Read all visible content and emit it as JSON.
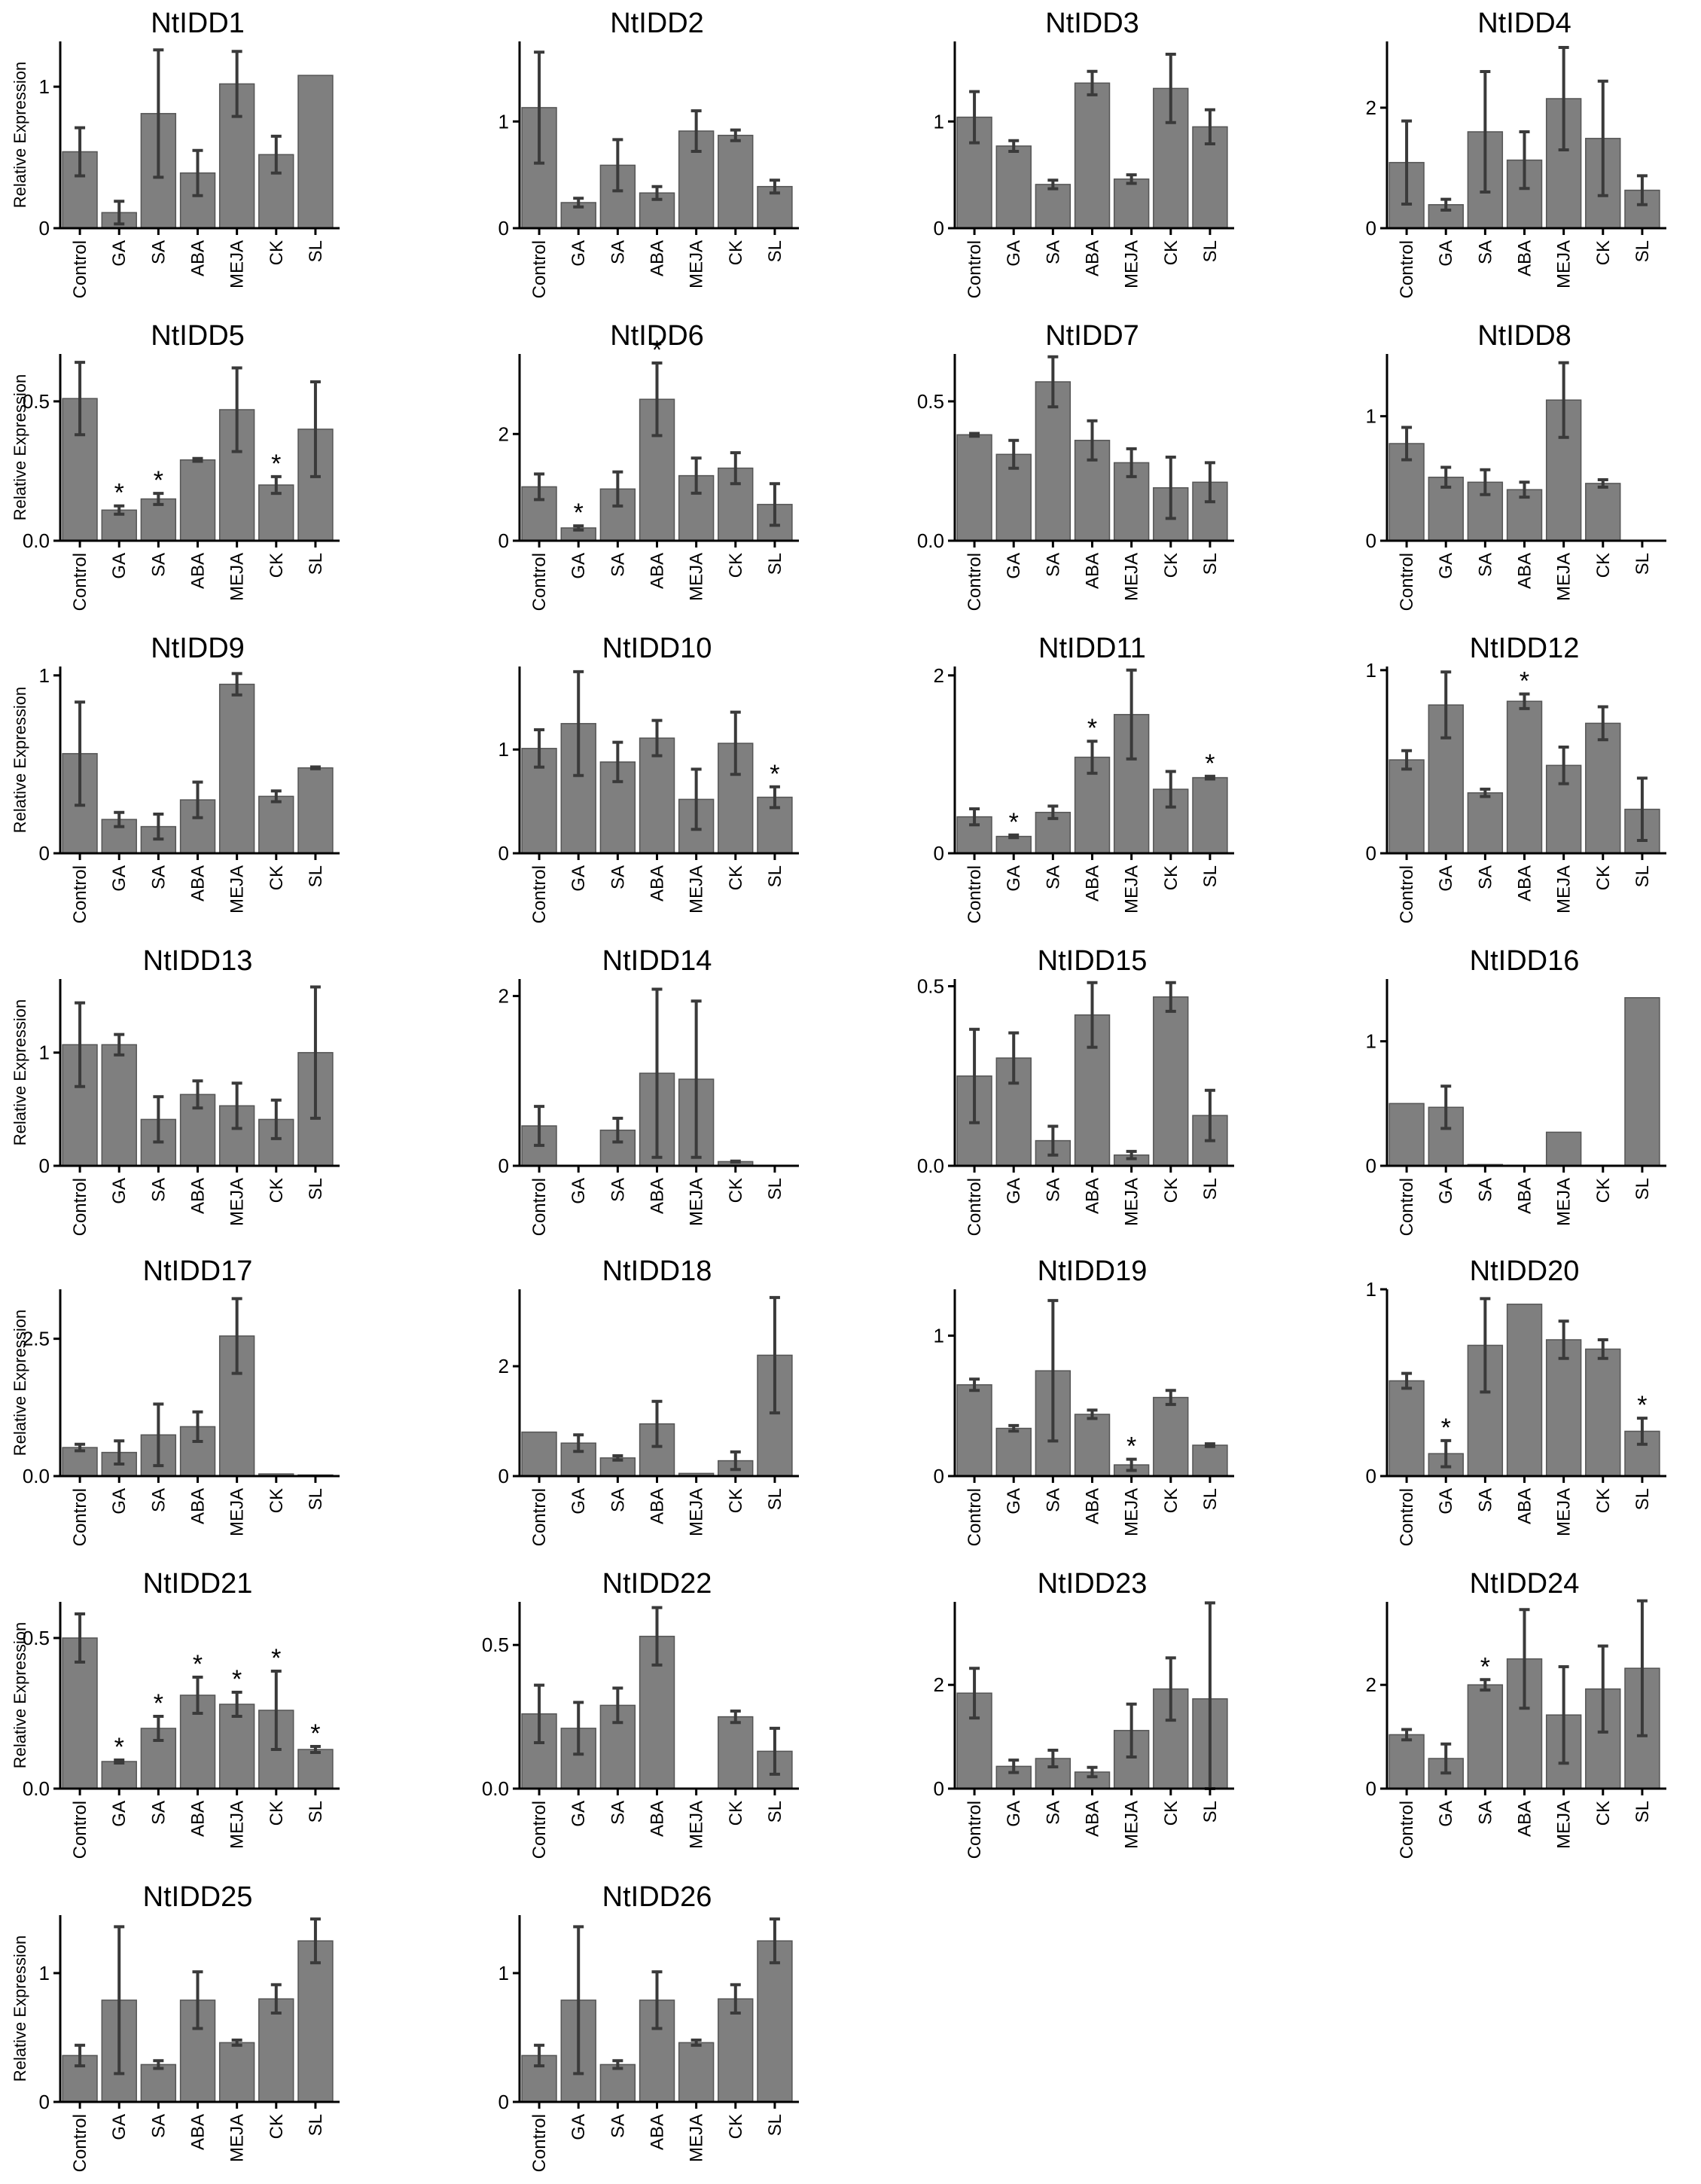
{
  "figure": {
    "ylabel": "Relative Expression",
    "colors": {
      "bar": "#7f7f7f",
      "error": "#3a3a3a",
      "axis": "#000000"
    }
  },
  "chart_data": [
    {
      "type": "bar",
      "title": "NtIDD1",
      "categories": [
        "Control",
        "GA",
        "SA",
        "ABA",
        "MEJA",
        "CK",
        "SL"
      ],
      "values": [
        0.54,
        0.11,
        0.81,
        0.39,
        1.02,
        0.52,
        1.08
      ],
      "errors": [
        0.17,
        0.08,
        0.45,
        0.16,
        0.23,
        0.13,
        0.0
      ],
      "significant": [
        false,
        false,
        false,
        false,
        false,
        false,
        false
      ],
      "ylim": [
        0,
        1.32
      ],
      "yticks": [
        "0",
        "1"
      ],
      "ytick_values": [
        0,
        1
      ]
    },
    {
      "type": "bar",
      "title": "NtIDD2",
      "categories": [
        "Control",
        "GA",
        "SA",
        "ABA",
        "MEJA",
        "CK",
        "SL"
      ],
      "values": [
        1.13,
        0.24,
        0.59,
        0.33,
        0.91,
        0.87,
        0.39
      ],
      "errors": [
        0.52,
        0.04,
        0.24,
        0.06,
        0.19,
        0.05,
        0.06
      ],
      "significant": [
        false,
        false,
        false,
        false,
        false,
        false,
        false
      ],
      "ylim": [
        0,
        1.75
      ],
      "yticks": [
        "0",
        "1"
      ],
      "ytick_values": [
        0,
        1
      ]
    },
    {
      "type": "bar",
      "title": "NtIDD3",
      "categories": [
        "Control",
        "GA",
        "SA",
        "ABA",
        "MEJA",
        "CK",
        "SL"
      ],
      "values": [
        1.04,
        0.77,
        0.41,
        1.36,
        0.46,
        1.31,
        0.95
      ],
      "errors": [
        0.24,
        0.05,
        0.04,
        0.11,
        0.04,
        0.32,
        0.16
      ],
      "significant": [
        false,
        false,
        false,
        false,
        false,
        false,
        false
      ],
      "ylim": [
        0,
        1.75
      ],
      "yticks": [
        "0",
        "1"
      ],
      "ytick_values": [
        0,
        1
      ]
    },
    {
      "type": "bar",
      "title": "NtIDD4",
      "categories": [
        "Control",
        "GA",
        "SA",
        "ABA",
        "MEJA",
        "CK",
        "SL"
      ],
      "values": [
        1.09,
        0.39,
        1.6,
        1.13,
        2.15,
        1.49,
        0.63
      ],
      "errors": [
        0.69,
        0.09,
        1.0,
        0.47,
        0.85,
        0.95,
        0.24
      ],
      "significant": [
        false,
        false,
        false,
        false,
        false,
        false,
        false
      ],
      "ylim": [
        0,
        3.1
      ],
      "yticks": [
        "0",
        "2"
      ],
      "ytick_values": [
        0,
        2
      ]
    },
    {
      "type": "bar",
      "title": "NtIDD5",
      "categories": [
        "Control",
        "GA",
        "SA",
        "ABA",
        "MEJA",
        "CK",
        "SL"
      ],
      "values": [
        0.51,
        0.11,
        0.15,
        0.29,
        0.47,
        0.2,
        0.4
      ],
      "errors": [
        0.13,
        0.015,
        0.02,
        0.005,
        0.15,
        0.03,
        0.17
      ],
      "significant": [
        false,
        true,
        true,
        false,
        false,
        true,
        false
      ],
      "ylim": [
        0,
        0.67
      ],
      "yticks": [
        "0.0",
        "0.5"
      ],
      "ytick_values": [
        0,
        0.5
      ]
    },
    {
      "type": "bar",
      "title": "NtIDD6",
      "categories": [
        "Control",
        "GA",
        "SA",
        "ABA",
        "MEJA",
        "CK",
        "SL"
      ],
      "values": [
        1.01,
        0.24,
        0.97,
        2.65,
        1.22,
        1.36,
        0.68
      ],
      "errors": [
        0.24,
        0.04,
        0.32,
        0.68,
        0.33,
        0.29,
        0.39
      ],
      "significant": [
        false,
        true,
        false,
        true,
        false,
        false,
        false
      ],
      "ylim": [
        0,
        3.5
      ],
      "yticks": [
        "0",
        "2"
      ],
      "ytick_values": [
        0,
        2
      ]
    },
    {
      "type": "bar",
      "title": "NtIDD7",
      "categories": [
        "Control",
        "GA",
        "SA",
        "ABA",
        "MEJA",
        "CK",
        "SL"
      ],
      "values": [
        0.38,
        0.31,
        0.57,
        0.36,
        0.28,
        0.19,
        0.21
      ],
      "errors": [
        0.005,
        0.05,
        0.09,
        0.07,
        0.05,
        0.11,
        0.07
      ],
      "significant": [
        false,
        false,
        false,
        false,
        false,
        false,
        false
      ],
      "ylim": [
        0,
        0.67
      ],
      "yticks": [
        "0.0",
        "0.5"
      ],
      "ytick_values": [
        0,
        0.5
      ]
    },
    {
      "type": "bar",
      "title": "NtIDD8",
      "categories": [
        "Control",
        "GA",
        "SA",
        "ABA",
        "MEJA",
        "CK",
        "SL"
      ],
      "values": [
        0.78,
        0.51,
        0.47,
        0.41,
        1.13,
        0.46,
        0.0
      ],
      "errors": [
        0.13,
        0.08,
        0.1,
        0.06,
        0.3,
        0.03,
        0.0
      ],
      "significant": [
        false,
        false,
        false,
        false,
        false,
        false,
        false
      ],
      "ylim": [
        0,
        1.5
      ],
      "yticks": [
        "0",
        "1"
      ],
      "ytick_values": [
        0,
        1
      ]
    },
    {
      "type": "bar",
      "title": "NtIDD9",
      "categories": [
        "Control",
        "GA",
        "SA",
        "ABA",
        "MEJA",
        "CK",
        "SL"
      ],
      "values": [
        0.56,
        0.19,
        0.15,
        0.3,
        0.95,
        0.32,
        0.48
      ],
      "errors": [
        0.29,
        0.04,
        0.07,
        0.1,
        0.06,
        0.03,
        0.005
      ],
      "significant": [
        false,
        false,
        false,
        false,
        false,
        false,
        false
      ],
      "ylim": [
        0,
        1.05
      ],
      "yticks": [
        "0",
        "1"
      ],
      "ytick_values": [
        0,
        1
      ]
    },
    {
      "type": "bar",
      "title": "NtIDD10",
      "categories": [
        "Control",
        "GA",
        "SA",
        "ABA",
        "MEJA",
        "CK",
        "SL"
      ],
      "values": [
        1.01,
        1.25,
        0.88,
        1.11,
        0.52,
        1.06,
        0.54
      ],
      "errors": [
        0.18,
        0.5,
        0.19,
        0.17,
        0.29,
        0.3,
        0.1
      ],
      "significant": [
        false,
        false,
        false,
        false,
        false,
        false,
        true
      ],
      "ylim": [
        0,
        1.8
      ],
      "yticks": [
        "0",
        "1"
      ],
      "ytick_values": [
        0,
        1
      ]
    },
    {
      "type": "bar",
      "title": "NtIDD11",
      "categories": [
        "Control",
        "GA",
        "SA",
        "ABA",
        "MEJA",
        "CK",
        "SL"
      ],
      "values": [
        0.41,
        0.19,
        0.46,
        1.08,
        1.56,
        0.72,
        0.85
      ],
      "errors": [
        0.09,
        0.015,
        0.07,
        0.18,
        0.5,
        0.2,
        0.015
      ],
      "significant": [
        false,
        true,
        false,
        true,
        false,
        false,
        true
      ],
      "ylim": [
        0,
        2.1
      ],
      "yticks": [
        "0",
        "2"
      ],
      "ytick_values": [
        0,
        2
      ]
    },
    {
      "type": "bar",
      "title": "NtIDD12",
      "categories": [
        "Control",
        "GA",
        "SA",
        "ABA",
        "MEJA",
        "CK",
        "SL"
      ],
      "values": [
        0.51,
        0.81,
        0.33,
        0.83,
        0.48,
        0.71,
        0.24
      ],
      "errors": [
        0.05,
        0.18,
        0.02,
        0.04,
        0.1,
        0.09,
        0.17
      ],
      "significant": [
        false,
        false,
        false,
        true,
        false,
        false,
        false
      ],
      "ylim": [
        0,
        1.02
      ],
      "yticks": [
        "0",
        "1"
      ],
      "ytick_values": [
        0,
        1
      ]
    },
    {
      "type": "bar",
      "title": "NtIDD13",
      "categories": [
        "Control",
        "GA",
        "SA",
        "ABA",
        "MEJA",
        "CK",
        "SL"
      ],
      "values": [
        1.07,
        1.07,
        0.41,
        0.63,
        0.53,
        0.41,
        1.0
      ],
      "errors": [
        0.37,
        0.09,
        0.2,
        0.12,
        0.2,
        0.17,
        0.58
      ],
      "significant": [
        false,
        false,
        false,
        false,
        false,
        false,
        false
      ],
      "ylim": [
        0,
        1.65
      ],
      "yticks": [
        "0",
        "1"
      ],
      "ytick_values": [
        0,
        1
      ]
    },
    {
      "type": "bar",
      "title": "NtIDD14",
      "categories": [
        "Control",
        "GA",
        "SA",
        "ABA",
        "MEJA",
        "CK",
        "SL"
      ],
      "values": [
        0.47,
        0.0,
        0.42,
        1.09,
        1.02,
        0.05,
        0.0
      ],
      "errors": [
        0.23,
        0.0,
        0.14,
        0.99,
        0.92,
        0.005,
        0.0
      ],
      "significant": [
        false,
        false,
        false,
        false,
        false,
        false,
        false
      ],
      "ylim": [
        0,
        2.2
      ],
      "yticks": [
        "0",
        "2"
      ],
      "ytick_values": [
        0,
        2
      ]
    },
    {
      "type": "bar",
      "title": "NtIDD15",
      "categories": [
        "Control",
        "GA",
        "SA",
        "ABA",
        "MEJA",
        "CK",
        "SL"
      ],
      "values": [
        0.25,
        0.3,
        0.07,
        0.42,
        0.03,
        0.47,
        0.14
      ],
      "errors": [
        0.13,
        0.07,
        0.04,
        0.09,
        0.01,
        0.04,
        0.07
      ],
      "significant": [
        false,
        false,
        false,
        false,
        false,
        false,
        false
      ],
      "ylim": [
        0,
        0.52
      ],
      "yticks": [
        "0.0",
        "0.5"
      ],
      "ytick_values": [
        0,
        0.5
      ]
    },
    {
      "type": "bar",
      "title": "NtIDD16",
      "categories": [
        "Control",
        "GA",
        "SA",
        "ABA",
        "MEJA",
        "CK",
        "SL"
      ],
      "values": [
        0.5,
        0.47,
        0.01,
        0.005,
        0.27,
        0.005,
        1.35
      ],
      "errors": [
        0.0,
        0.17,
        0.0,
        0.0,
        0.0,
        0.0,
        0.0
      ],
      "significant": [
        false,
        false,
        false,
        false,
        false,
        false,
        false
      ],
      "ylim": [
        0,
        1.5
      ],
      "yticks": [
        "0",
        "1"
      ],
      "ytick_values": [
        0,
        1
      ]
    },
    {
      "type": "bar",
      "title": "NtIDD17",
      "categories": [
        "Control",
        "GA",
        "SA",
        "ABA",
        "MEJA",
        "CK",
        "SL"
      ],
      "values": [
        0.52,
        0.43,
        0.75,
        0.9,
        2.55,
        0.04,
        0.02
      ],
      "errors": [
        0.06,
        0.21,
        0.56,
        0.27,
        0.68,
        0.0,
        0.0
      ],
      "significant": [
        false,
        false,
        false,
        false,
        false,
        false,
        false
      ],
      "ylim": [
        0,
        3.4
      ],
      "yticks": [
        "0.0",
        "2.5"
      ],
      "ytick_values": [
        0,
        2.5
      ]
    },
    {
      "type": "bar",
      "title": "NtIDD18",
      "categories": [
        "Control",
        "GA",
        "SA",
        "ABA",
        "MEJA",
        "CK",
        "SL"
      ],
      "values": [
        0.8,
        0.6,
        0.33,
        0.95,
        0.05,
        0.28,
        2.2
      ],
      "errors": [
        0.0,
        0.15,
        0.04,
        0.41,
        0.0,
        0.16,
        1.05
      ],
      "significant": [
        false,
        false,
        false,
        false,
        false,
        false,
        false
      ],
      "ylim": [
        0,
        3.4
      ],
      "yticks": [
        "0",
        "2"
      ],
      "ytick_values": [
        0,
        2
      ]
    },
    {
      "type": "bar",
      "title": "NtIDD19",
      "categories": [
        "Control",
        "GA",
        "SA",
        "ABA",
        "MEJA",
        "CK",
        "SL"
      ],
      "values": [
        0.65,
        0.34,
        0.75,
        0.44,
        0.08,
        0.56,
        0.22
      ],
      "errors": [
        0.04,
        0.02,
        0.5,
        0.03,
        0.04,
        0.05,
        0.01
      ],
      "significant": [
        false,
        false,
        false,
        false,
        true,
        false,
        false
      ],
      "ylim": [
        0,
        1.33
      ],
      "yticks": [
        "0",
        "1"
      ],
      "ytick_values": [
        0,
        1
      ]
    },
    {
      "type": "bar",
      "title": "NtIDD20",
      "categories": [
        "Control",
        "GA",
        "SA",
        "ABA",
        "MEJA",
        "CK",
        "SL"
      ],
      "values": [
        0.51,
        0.12,
        0.7,
        0.92,
        0.73,
        0.68,
        0.24
      ],
      "errors": [
        0.04,
        0.07,
        0.25,
        0.0,
        0.1,
        0.05,
        0.07
      ],
      "significant": [
        false,
        true,
        false,
        false,
        false,
        false,
        true
      ],
      "ylim": [
        0,
        1.0
      ],
      "yticks": [
        "0",
        "1"
      ],
      "ytick_values": [
        0,
        1
      ]
    },
    {
      "type": "bar",
      "title": "NtIDD21",
      "categories": [
        "Control",
        "GA",
        "SA",
        "ABA",
        "MEJA",
        "CK",
        "SL"
      ],
      "values": [
        0.5,
        0.09,
        0.2,
        0.31,
        0.28,
        0.26,
        0.13
      ],
      "errors": [
        0.08,
        0.005,
        0.04,
        0.06,
        0.04,
        0.13,
        0.01
      ],
      "significant": [
        false,
        true,
        true,
        true,
        true,
        true,
        true
      ],
      "ylim": [
        0,
        0.62
      ],
      "yticks": [
        "0.0",
        "0.5"
      ],
      "ytick_values": [
        0,
        0.5
      ]
    },
    {
      "type": "bar",
      "title": "NtIDD22",
      "categories": [
        "Control",
        "GA",
        "SA",
        "ABA",
        "MEJA",
        "CK",
        "SL"
      ],
      "values": [
        0.26,
        0.21,
        0.29,
        0.53,
        0.0,
        0.25,
        0.13
      ],
      "errors": [
        0.1,
        0.09,
        0.06,
        0.1,
        0.0,
        0.02,
        0.08
      ],
      "significant": [
        false,
        false,
        false,
        false,
        false,
        false,
        false
      ],
      "ylim": [
        0,
        0.65
      ],
      "yticks": [
        "0.0",
        "0.5"
      ],
      "ytick_values": [
        0,
        0.5
      ]
    },
    {
      "type": "bar",
      "title": "NtIDD23",
      "categories": [
        "Control",
        "GA",
        "SA",
        "ABA",
        "MEJA",
        "CK",
        "SL"
      ],
      "values": [
        1.84,
        0.43,
        0.58,
        0.32,
        1.12,
        1.92,
        1.73
      ],
      "errors": [
        0.48,
        0.12,
        0.16,
        0.09,
        0.51,
        0.6,
        1.85
      ],
      "significant": [
        false,
        false,
        false,
        false,
        false,
        false,
        false
      ],
      "ylim": [
        0,
        3.6
      ],
      "yticks": [
        "0",
        "2"
      ],
      "ytick_values": [
        0,
        2
      ]
    },
    {
      "type": "bar",
      "title": "NtIDD24",
      "categories": [
        "Control",
        "GA",
        "SA",
        "ABA",
        "MEJA",
        "CK",
        "SL"
      ],
      "values": [
        1.04,
        0.58,
        2.0,
        2.5,
        1.42,
        1.92,
        2.32
      ],
      "errors": [
        0.1,
        0.28,
        0.1,
        0.95,
        0.93,
        0.83,
        1.3
      ],
      "significant": [
        false,
        false,
        true,
        false,
        false,
        false,
        false
      ],
      "ylim": [
        0,
        3.6
      ],
      "yticks": [
        "0",
        "2"
      ],
      "ytick_values": [
        0,
        2
      ]
    },
    {
      "type": "bar",
      "title": "NtIDD25",
      "categories": [
        "Control",
        "GA",
        "SA",
        "ABA",
        "MEJA",
        "CK",
        "SL"
      ],
      "values": [
        0.36,
        0.79,
        0.29,
        0.79,
        0.46,
        0.8,
        1.25
      ],
      "errors": [
        0.08,
        0.57,
        0.03,
        0.22,
        0.02,
        0.11,
        0.17
      ],
      "significant": [
        false,
        false,
        false,
        false,
        false,
        false,
        false
      ],
      "ylim": [
        0,
        1.45
      ],
      "yticks": [
        "0",
        "1"
      ],
      "ytick_values": [
        0,
        1
      ]
    },
    {
      "type": "bar",
      "title": "NtIDD26",
      "categories": [
        "Control",
        "GA",
        "SA",
        "ABA",
        "MEJA",
        "CK",
        "SL"
      ],
      "values": [
        0.36,
        0.79,
        0.29,
        0.79,
        0.46,
        0.8,
        1.25
      ],
      "errors": [
        0.08,
        0.57,
        0.03,
        0.22,
        0.02,
        0.11,
        0.17
      ],
      "significant": [
        false,
        false,
        false,
        false,
        false,
        false,
        false
      ],
      "ylim": [
        0,
        1.45
      ],
      "yticks": [
        "0",
        "1"
      ],
      "ytick_values": [
        0,
        1
      ]
    }
  ]
}
